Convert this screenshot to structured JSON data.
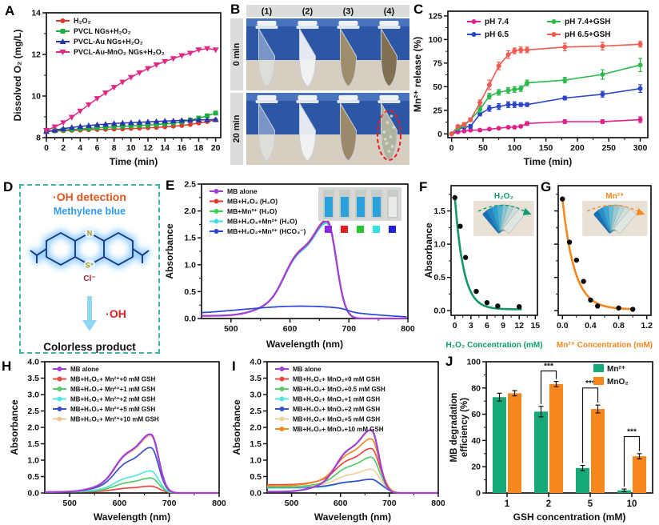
{
  "panels": {
    "A": {
      "label": "A"
    },
    "B": {
      "label": "B"
    },
    "C": {
      "label": "C"
    },
    "D": {
      "label": "D"
    },
    "E": {
      "label": "E"
    },
    "F": {
      "label": "F"
    },
    "G": {
      "label": "G"
    },
    "H": {
      "label": "H"
    },
    "I": {
      "label": "I"
    },
    "J": {
      "label": "J"
    }
  },
  "panelB": {
    "col_labels": [
      "(1)",
      "(2)",
      "(3)",
      "(4)"
    ],
    "row_labels": [
      "0 min",
      "20 min"
    ],
    "strip_color": "#dcdcdc",
    "rack_color": "#2b57a6",
    "rack_top_color": "#4a73bd",
    "bench_color": "#d6cfc1",
    "tube_fills_0min": [
      "rgba(225,238,246,0.30)",
      "rgba(240,243,244,0.92)",
      "#8f7a52",
      "#6d5835"
    ],
    "tube_fills_20min": [
      "rgba(225,238,246,0.30)",
      "rgba(240,243,244,0.92)",
      "#8a7550",
      "foam"
    ],
    "foam_color": "#a2a791",
    "foam_speckle": "#d8dcc8",
    "circle_color": "#ee1c1c"
  },
  "panelD": {
    "title": "·OH detection",
    "subtitle": "Methylene blue",
    "counterion": "Cl⁻",
    "n_label": "N",
    "s_label": "S⁺",
    "arrow_label": "·OH",
    "product": "Colorless product",
    "ring_color": "#16337a",
    "glow_color": "#86c9ff",
    "hetero_color": "#a3971c",
    "cl_color": "#a0252f"
  },
  "chart_data": [
    {
      "id": "A",
      "type": "line",
      "xlabel": "Time (min)",
      "ylabel": "Dissolved O₂ (mg/L)",
      "xlim": [
        0,
        20.6
      ],
      "ylim": [
        8,
        14
      ],
      "xticks": [
        0,
        2,
        4,
        6,
        8,
        10,
        12,
        14,
        16,
        18,
        20
      ],
      "yticks": [
        8,
        10,
        12,
        14
      ],
      "xminor": [
        1,
        3,
        5,
        7,
        9,
        11,
        13,
        15,
        17,
        19
      ],
      "yminor": [
        9,
        11,
        13
      ],
      "x": [
        0,
        1,
        2,
        3,
        4,
        5,
        6,
        7,
        8,
        9,
        10,
        11,
        12,
        13,
        14,
        15,
        16,
        17,
        18,
        19,
        20
      ],
      "series": [
        {
          "name": "H₂O₂",
          "color": "#e03a30",
          "marker": "circle",
          "y": [
            8.3,
            8.32,
            8.33,
            8.35,
            8.36,
            8.38,
            8.39,
            8.4,
            8.41,
            8.42,
            8.44,
            8.45,
            8.47,
            8.49,
            8.52,
            8.55,
            8.58,
            8.63,
            8.7,
            8.77,
            8.85
          ]
        },
        {
          "name": "PVCL NGs+H₂O₂",
          "color": "#1fae3e",
          "marker": "square",
          "y": [
            8.32,
            8.34,
            8.37,
            8.39,
            8.42,
            8.44,
            8.47,
            8.49,
            8.52,
            8.54,
            8.56,
            8.58,
            8.6,
            8.63,
            8.66,
            8.7,
            8.76,
            8.84,
            8.94,
            9.05,
            9.18
          ]
        },
        {
          "name": "PVCL-Au NGs+H₂O₂",
          "color": "#2836ad",
          "marker": "tu",
          "y": [
            8.3,
            8.36,
            8.43,
            8.49,
            8.54,
            8.58,
            8.62,
            8.65,
            8.68,
            8.7,
            8.72,
            8.74,
            8.76,
            8.78,
            8.8,
            8.81,
            8.83,
            8.84,
            8.85,
            8.86,
            8.87
          ]
        },
        {
          "name": "PVCL-Au-MnO₂ NGs+H₂O₂",
          "color": "#df2a85",
          "marker": "td",
          "y": [
            8.35,
            8.52,
            8.72,
            8.98,
            9.28,
            9.58,
            9.88,
            10.15,
            10.42,
            10.67,
            10.9,
            11.12,
            11.32,
            11.5,
            11.66,
            11.8,
            11.94,
            12.06,
            12.22,
            12.28,
            12.22
          ]
        }
      ]
    },
    {
      "id": "C",
      "type": "line",
      "xlabel": "Time (min)",
      "ylabel": "Mn²⁺ release (%)",
      "xlim": [
        -6,
        312
      ],
      "ylim": [
        -4,
        130
      ],
      "xticks": [
        0,
        50,
        100,
        150,
        200,
        250,
        300
      ],
      "yticks": [
        0,
        25,
        50,
        75,
        100,
        125
      ],
      "xminor": [
        25,
        75,
        125,
        175,
        225,
        275
      ],
      "yminor": [
        12.5,
        37.5,
        62.5,
        87.5,
        112.5
      ],
      "x": [
        0,
        10,
        20,
        30,
        45,
        60,
        75,
        90,
        100,
        110,
        120,
        180,
        240,
        300
      ],
      "series": [
        {
          "name": "pH 7.4",
          "color": "#e0218a",
          "marker": "circle",
          "y": [
            0,
            2,
            3,
            4,
            4,
            5,
            6,
            7,
            7,
            8,
            11,
            13,
            13,
            15
          ],
          "err": [
            1,
            1,
            1,
            1,
            1,
            1,
            1,
            1,
            1,
            1,
            2,
            2,
            2,
            3
          ]
        },
        {
          "name": "pH 6.5",
          "color": "#2947c8",
          "marker": "circle",
          "y": [
            0,
            5,
            7,
            8,
            21,
            27,
            29,
            31,
            31,
            31,
            31,
            38,
            42,
            48
          ],
          "err": [
            1,
            1,
            1,
            2,
            2,
            3,
            3,
            3,
            3,
            2,
            2,
            2,
            3,
            4
          ]
        },
        {
          "name": "pH 7.4+GSH",
          "color": "#2eb94d",
          "marker": "circle",
          "y": [
            0,
            6,
            9,
            15,
            26,
            40,
            44,
            46,
            47,
            48,
            54,
            57,
            63,
            73
          ],
          "err": [
            1,
            1,
            2,
            2,
            3,
            3,
            3,
            3,
            3,
            3,
            3,
            3,
            5,
            7
          ]
        },
        {
          "name": "pH 6.5+GSH",
          "color": "#ef5a52",
          "marker": "circle",
          "y": [
            0,
            8,
            10,
            15,
            33,
            52,
            72,
            84,
            88,
            89,
            89,
            92,
            93,
            95
          ],
          "err": [
            1,
            1,
            2,
            2,
            3,
            5,
            4,
            4,
            3,
            3,
            3,
            4,
            4,
            3
          ]
        }
      ],
      "legend_cols": true
    },
    {
      "id": "E",
      "type": "spectra",
      "xlabel": "Wavelength (nm)",
      "ylabel": "Absorbance",
      "xlim": [
        450,
        800
      ],
      "ylim": [
        0,
        2.5
      ],
      "ydec": 1,
      "xticks": [
        500,
        600,
        700,
        800
      ],
      "yticks": [
        0,
        0.5,
        1,
        1.5,
        2,
        2.5
      ],
      "xminor": [
        550,
        650,
        750
      ],
      "yminor": [
        0.25,
        0.75,
        1.25,
        1.75,
        2.25
      ],
      "series": [
        {
          "name": "MB alone",
          "color": "#a03fd4",
          "peak": 1.78,
          "base": 0.05,
          "lw": 2.3
        },
        {
          "name": "MB+H₂O₂ (H₂O)",
          "color": "#e03a30",
          "peak": 1.8,
          "base": 0.05
        },
        {
          "name": "MB+Mn²⁺ (H₂O)",
          "color": "#38d44e",
          "peak": 1.77,
          "base": 0.05
        },
        {
          "name": "MB+H₂O₂+Mn²⁺ (H₂O)",
          "color": "#3fdede",
          "peak": 1.74,
          "base": 0.05
        },
        {
          "name": "MB+H₂O₂+Mn²⁺ (HCO₃⁻)",
          "color": "#2c46d8",
          "flat": 0.16,
          "base": 0.07
        }
      ],
      "draw_order": [
        3,
        2,
        1,
        0,
        4
      ],
      "inset": {
        "cuvette_colors": [
          "#2aa3dc",
          "#2aa3dc",
          "#2aa3dc",
          "#2aa3dc",
          "#e8ebe8"
        ],
        "squares": [
          "#9025e0",
          "#e01f1f",
          "#28c828",
          "#35e0e0",
          "#2222d8"
        ]
      }
    },
    {
      "id": "F",
      "type": "scatter-fit",
      "xlabel": "H₂O₂ Concentration (mM)",
      "xlabel_color": "#0e9c6e",
      "ylabel": "Absorbance",
      "color": "#12976b",
      "xlim": [
        -0.7,
        15.4
      ],
      "ylim": [
        -0.07,
        1.88
      ],
      "ydec": 1,
      "xticks": [
        0,
        3,
        6,
        9,
        12,
        15
      ],
      "yticks": [
        0,
        0.5,
        1,
        1.5
      ],
      "xminor": [
        1.5,
        4.5,
        7.5,
        10.5,
        13.5
      ],
      "yminor": [
        0.25,
        0.75,
        1.25,
        1.75
      ],
      "points_x": [
        0,
        1,
        2,
        4,
        6,
        8,
        12
      ],
      "points_y": [
        1.7,
        1.27,
        0.8,
        0.29,
        0.12,
        0.07,
        0.06
      ],
      "fit": {
        "A": 1.7,
        "tau": 1.6,
        "c": 0.02,
        "xmax": 12.6
      },
      "inset_label": "H₂O₂",
      "inset_label_color": "#0e9c6e",
      "fan_colors": [
        "#1b6fb5",
        "#2187c6",
        "#2f9fd2",
        "#4fb3d6",
        "#86c5d4",
        "#b4d4d4",
        "#cfdeda",
        "#dfe6e2"
      ]
    },
    {
      "id": "G",
      "type": "scatter-fit",
      "xlabel": "Mn²⁺ Concentration (mM)",
      "xlabel_color": "#f6871f",
      "ylabel": "",
      "color": "#f6871f",
      "noYTickLabels": true,
      "xlim": [
        -0.06,
        1.26
      ],
      "ylim": [
        -0.07,
        1.88
      ],
      "xdec": 1,
      "xticks": [
        0,
        0.4,
        0.8,
        1.2
      ],
      "yticks": [
        0,
        0.5,
        1,
        1.5
      ],
      "xminor": [
        0.2,
        0.6,
        1.0
      ],
      "yminor": [
        0.25,
        0.75,
        1.25,
        1.75
      ],
      "points_x": [
        0,
        0.1,
        0.2,
        0.3,
        0.4,
        0.5,
        0.8,
        1.0
      ],
      "points_y": [
        1.68,
        1.03,
        0.76,
        0.44,
        0.16,
        0.07,
        0.04,
        0.02
      ],
      "fit": {
        "A": 1.66,
        "tau": 0.17,
        "c": 0.02,
        "xmax": 1.01
      },
      "inset_label": "Mn²⁺",
      "inset_label_color": "#f6871f",
      "fan_colors": [
        "#1b6fb5",
        "#2590cb",
        "#3aa6d4",
        "#66bcd6",
        "#9accd4",
        "#bcd8d6",
        "#d2e0da",
        "#e0e7e1"
      ]
    },
    {
      "id": "H",
      "type": "spectra",
      "xlabel": "Wavelength (nm)",
      "ylabel": "Absorbance",
      "xlim": [
        450,
        800
      ],
      "ylim": [
        0,
        4
      ],
      "ydec": 1,
      "xticks": [
        500,
        600,
        700,
        800
      ],
      "yticks": [
        0,
        0.5,
        1,
        1.5,
        2,
        2.5,
        3,
        3.5,
        4
      ],
      "xminor": [
        550,
        650,
        750
      ],
      "series": [
        {
          "name": "MB alone",
          "color": "#a03fd4",
          "peak": 1.78,
          "base": 0.03,
          "lw": 2.2
        },
        {
          "name": "MB+H₂O₂+ Mn²⁺+0 mM GSH",
          "color": "#e8493f",
          "peak": 0.18,
          "base": 0.03
        },
        {
          "name": "MB+H₂O₂+ Mn²⁺+1 mM GSH",
          "color": "#55cc6a",
          "peak": 0.43,
          "base": 0.03
        },
        {
          "name": "MB+H₂O₂+ Mn²⁺+2 mM GSH",
          "color": "#52e5e0",
          "peak": 0.65,
          "base": 0.03
        },
        {
          "name": "MB+H₂O₂+ Mn²⁺+5 mM GSH",
          "color": "#3a50c8",
          "peak": 1.37,
          "base": 0.03
        },
        {
          "name": "MB+H₂O₂+ Mn²⁺+10 mM GSH",
          "color": "#f0c894",
          "peak": 1.72,
          "base": 0.03
        }
      ],
      "draw_order": [
        1,
        2,
        3,
        4,
        5,
        0
      ]
    },
    {
      "id": "I",
      "type": "spectra",
      "xlabel": "Wavelength (nm)",
      "ylabel": "Absorbance",
      "xlim": [
        450,
        800
      ],
      "ylim": [
        0,
        4
      ],
      "ydec": 1,
      "xticks": [
        500,
        600,
        700,
        800
      ],
      "yticks": [
        0,
        0.5,
        1,
        1.5,
        2,
        2.5,
        3,
        3.5,
        4
      ],
      "xminor": [
        550,
        650,
        750
      ],
      "series": [
        {
          "name": "MB alone",
          "color": "#a03fd4",
          "peak": 1.9,
          "base": 0.04,
          "lw": 2.2
        },
        {
          "name": "MB+H₂O₂+ MnO₂+0 mM GSH",
          "color": "#e8493f",
          "peak": 1.12,
          "base": 0.25
        },
        {
          "name": "MB+H₂O₂+ MnO₂+0.5 mM GSH",
          "color": "#55cc6a",
          "peak": 0.92,
          "base": 0.18
        },
        {
          "name": "MB+H₂O₂+ MnO₂+1 mM GSH",
          "color": "#52e5e0",
          "peak": 0.27,
          "base": 0.15
        },
        {
          "name": "MB+H₂O₂+ MnO₂+2 mM GSH",
          "color": "#3a50c8",
          "peak": 0.25,
          "base": 0.17
        },
        {
          "name": "MB+H₂O₂+ MnO₂+5 mM GSH",
          "color": "#f3cf9a",
          "peak": 0.55,
          "base": 0.18
        },
        {
          "name": "MB+H₂O₂+ MnO₂+10 mM GSH",
          "color": "#f08a1e",
          "peak": 1.45,
          "base": 0.22
        }
      ],
      "draw_order": [
        3,
        4,
        5,
        2,
        1,
        6,
        0
      ]
    },
    {
      "id": "J",
      "type": "bar",
      "xlabel": "GSH concentration (mM)",
      "ylabel_lines": [
        "MB degradation",
        "efficiency (%)"
      ],
      "categories": [
        "1",
        "2",
        "5",
        "10"
      ],
      "ylim": [
        0,
        100
      ],
      "yticks": [
        0,
        20,
        40,
        60,
        80,
        100
      ],
      "yminor": [
        10,
        30,
        50,
        70,
        90
      ],
      "series": [
        {
          "name": "Mn²⁺",
          "color": "#16a878",
          "values": [
            73,
            62,
            19,
            2
          ],
          "err": [
            3,
            4,
            2,
            1
          ]
        },
        {
          "name": "MnO₂",
          "color": "#f6871f",
          "values": [
            76,
            83,
            64,
            28
          ],
          "err": [
            2,
            2,
            3,
            2
          ]
        }
      ],
      "sig": {
        "label": "***",
        "groups": [
          1,
          2,
          3
        ],
        "heights": [
          93,
          80,
          43
        ]
      }
    }
  ]
}
